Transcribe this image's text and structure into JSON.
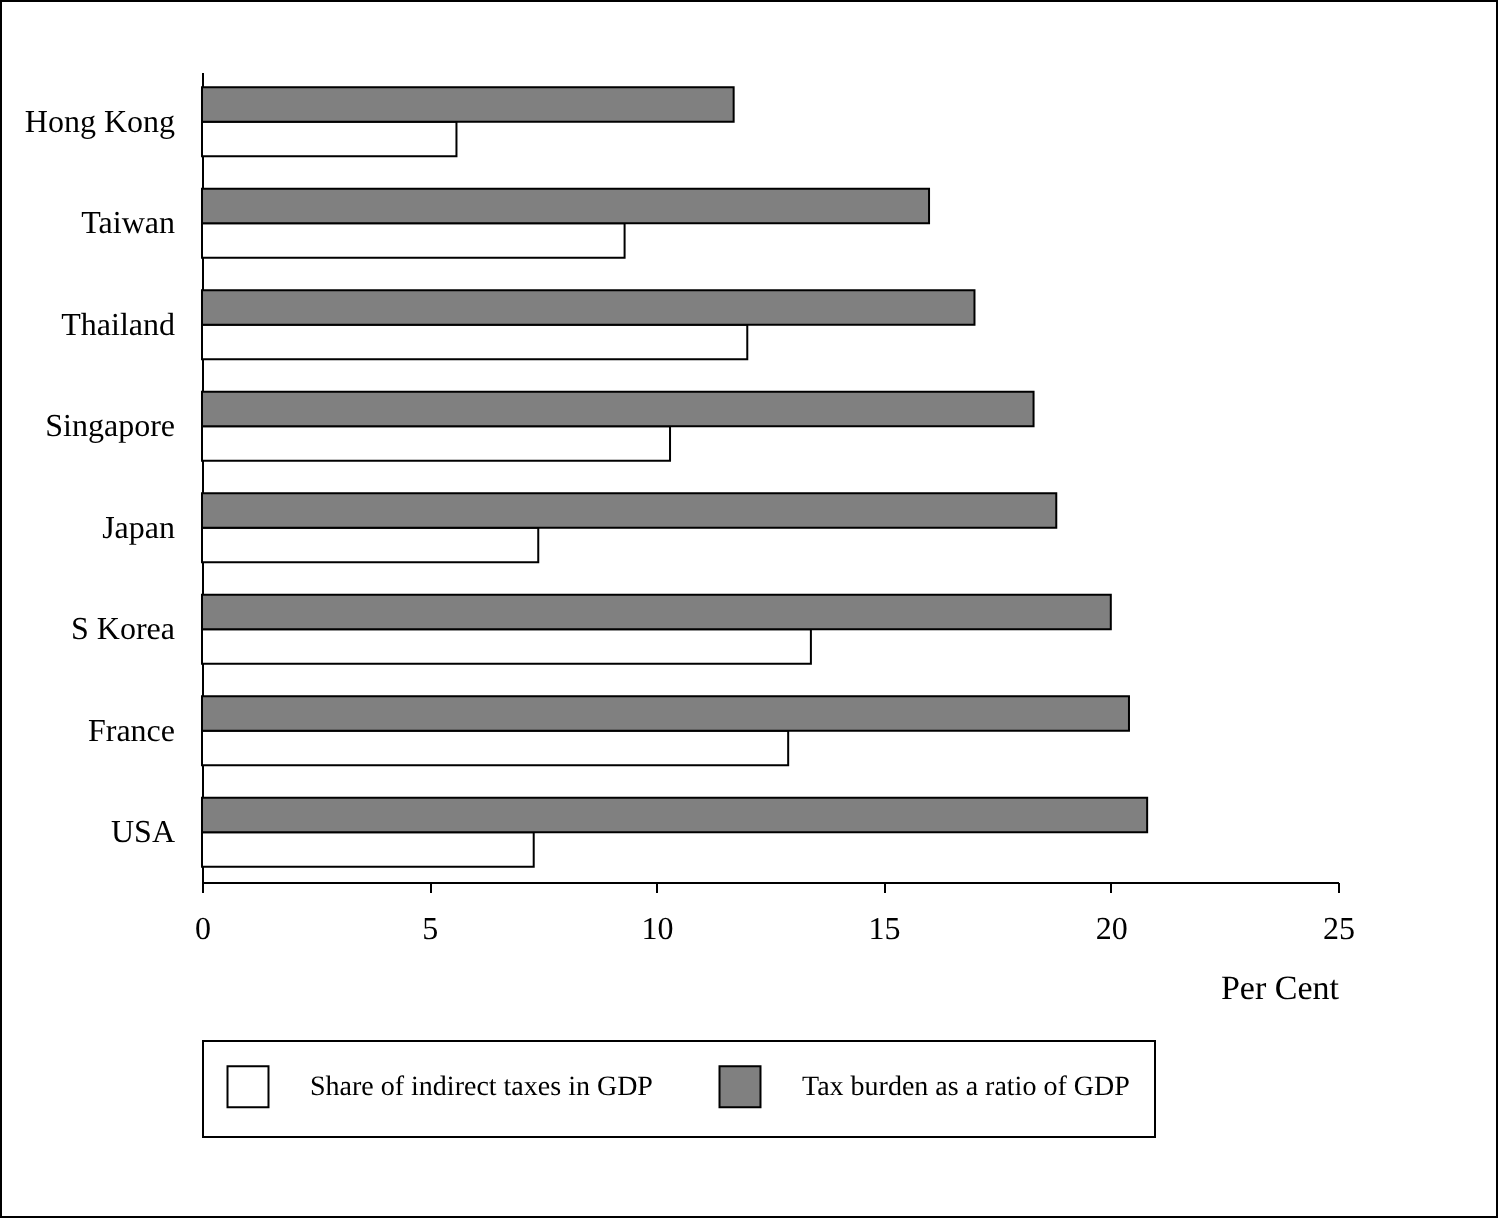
{
  "chart_data": {
    "type": "bar",
    "orientation": "horizontal",
    "xlabel": "Per Cent",
    "categories": [
      "Hong Kong",
      "Taiwan",
      "Thailand",
      "Singapore",
      "Japan",
      "S Korea",
      "France",
      "USA"
    ],
    "series": [
      {
        "name": "Share of indirect taxes in GDP",
        "color": "#ffffff",
        "values": [
          5.6,
          9.3,
          12.0,
          10.3,
          7.4,
          13.4,
          12.9,
          7.3
        ]
      },
      {
        "name": "Tax burden as a ratio of GDP",
        "color": "#808080",
        "values": [
          11.7,
          16.0,
          17.0,
          18.3,
          18.8,
          20.0,
          20.4,
          20.8
        ]
      }
    ],
    "xlim": [
      0,
      25
    ],
    "xticks": [
      0,
      5,
      10,
      15,
      20,
      25
    ],
    "grid": false,
    "legend": "bottom"
  }
}
